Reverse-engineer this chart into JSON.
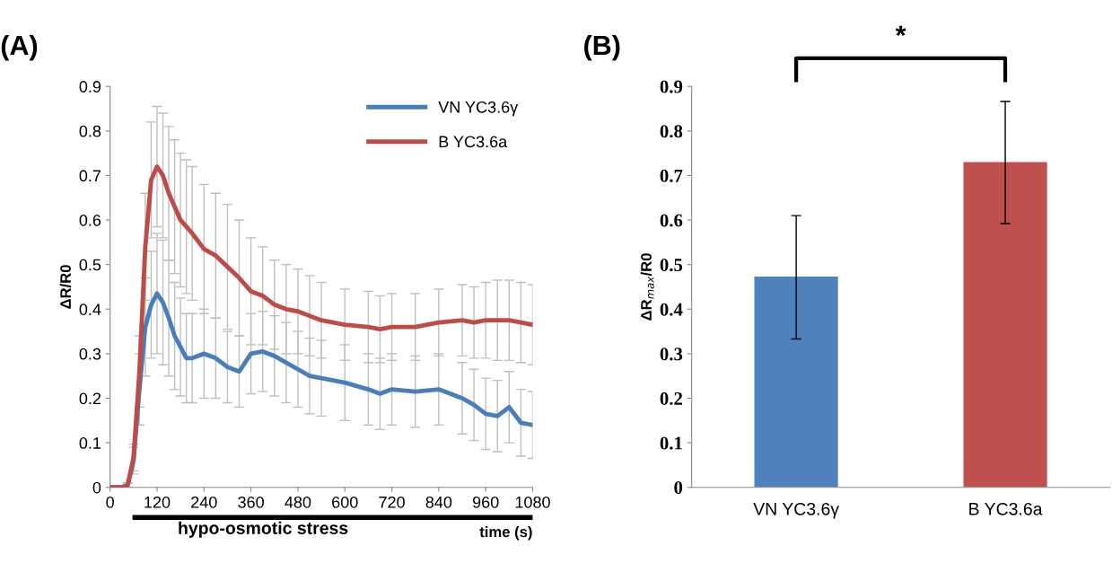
{
  "chart_data": [
    {
      "type": "line",
      "title": "(A)",
      "xlabel": "time (s)",
      "ylabel": "ΔR/R0",
      "x": [
        0,
        30,
        45,
        60,
        75,
        90,
        105,
        120,
        135,
        150,
        165,
        180,
        195,
        210,
        240,
        270,
        300,
        330,
        360,
        390,
        420,
        450,
        480,
        510,
        540,
        600,
        660,
        690,
        720,
        780,
        840,
        900,
        930,
        960,
        990,
        1020,
        1050,
        1080
      ],
      "series": [
        {
          "name": "VN YC3.6γ",
          "color": "#4a7ebb",
          "values": [
            0,
            0,
            0.005,
            0.06,
            0.22,
            0.36,
            0.41,
            0.435,
            0.415,
            0.38,
            0.34,
            0.315,
            0.29,
            0.29,
            0.3,
            0.29,
            0.27,
            0.26,
            0.3,
            0.305,
            0.295,
            0.28,
            0.265,
            0.25,
            0.245,
            0.235,
            0.22,
            0.21,
            0.22,
            0.215,
            0.22,
            0.2,
            0.185,
            0.165,
            0.16,
            0.18,
            0.145,
            0.14
          ],
          "errors": [
            0,
            0,
            0.005,
            0.03,
            0.08,
            0.11,
            0.12,
            0.135,
            0.14,
            0.13,
            0.12,
            0.11,
            0.1,
            0.1,
            0.1,
            0.09,
            0.08,
            0.08,
            0.09,
            0.09,
            0.09,
            0.09,
            0.085,
            0.085,
            0.085,
            0.085,
            0.08,
            0.08,
            0.08,
            0.08,
            0.08,
            0.08,
            0.08,
            0.08,
            0.08,
            0.08,
            0.075,
            0.075
          ]
        },
        {
          "name": "B YC3.6a",
          "color": "#be4b48",
          "values": [
            0,
            0,
            0.005,
            0.067,
            0.26,
            0.54,
            0.69,
            0.72,
            0.7,
            0.66,
            0.63,
            0.6,
            0.585,
            0.57,
            0.535,
            0.52,
            0.495,
            0.47,
            0.44,
            0.43,
            0.41,
            0.4,
            0.395,
            0.385,
            0.375,
            0.365,
            0.36,
            0.355,
            0.36,
            0.36,
            0.37,
            0.375,
            0.37,
            0.375,
            0.375,
            0.375,
            0.37,
            0.365
          ],
          "errors": [
            0,
            0,
            0.005,
            0.03,
            0.08,
            0.12,
            0.13,
            0.135,
            0.14,
            0.15,
            0.15,
            0.15,
            0.15,
            0.15,
            0.145,
            0.14,
            0.14,
            0.13,
            0.12,
            0.11,
            0.1,
            0.1,
            0.095,
            0.09,
            0.085,
            0.08,
            0.08,
            0.075,
            0.075,
            0.075,
            0.075,
            0.08,
            0.08,
            0.085,
            0.09,
            0.09,
            0.09,
            0.09
          ]
        }
      ],
      "xlim": [
        0,
        1080
      ],
      "xticks": [
        0,
        120,
        240,
        360,
        480,
        600,
        720,
        840,
        960,
        1080
      ],
      "ylim": [
        0,
        0.9
      ],
      "yticks": [
        0,
        0.1,
        0.2,
        0.3,
        0.4,
        0.5,
        0.6,
        0.7,
        0.8,
        0.9
      ],
      "annotations": [
        "hypo-osmotic stress"
      ],
      "legend": "top right",
      "grid": false
    },
    {
      "type": "bar",
      "title": "(B)",
      "ylabel": "ΔR$_{max}$/R0",
      "categories": [
        "VN YC3.6γ",
        "B YC3.6a"
      ],
      "values": [
        0.473,
        0.73
      ],
      "colors": [
        "#4f81bd",
        "#c0504d"
      ],
      "errors": [
        [
          0.333,
          0.61
        ],
        [
          0.592,
          0.866
        ]
      ],
      "ylim": [
        0,
        0.9
      ],
      "yticks": [
        0,
        0.1,
        0.2,
        0.3,
        0.4,
        0.5,
        0.6,
        0.7,
        0.8,
        0.9
      ],
      "annotations": [
        "*"
      ],
      "grid": false
    }
  ]
}
